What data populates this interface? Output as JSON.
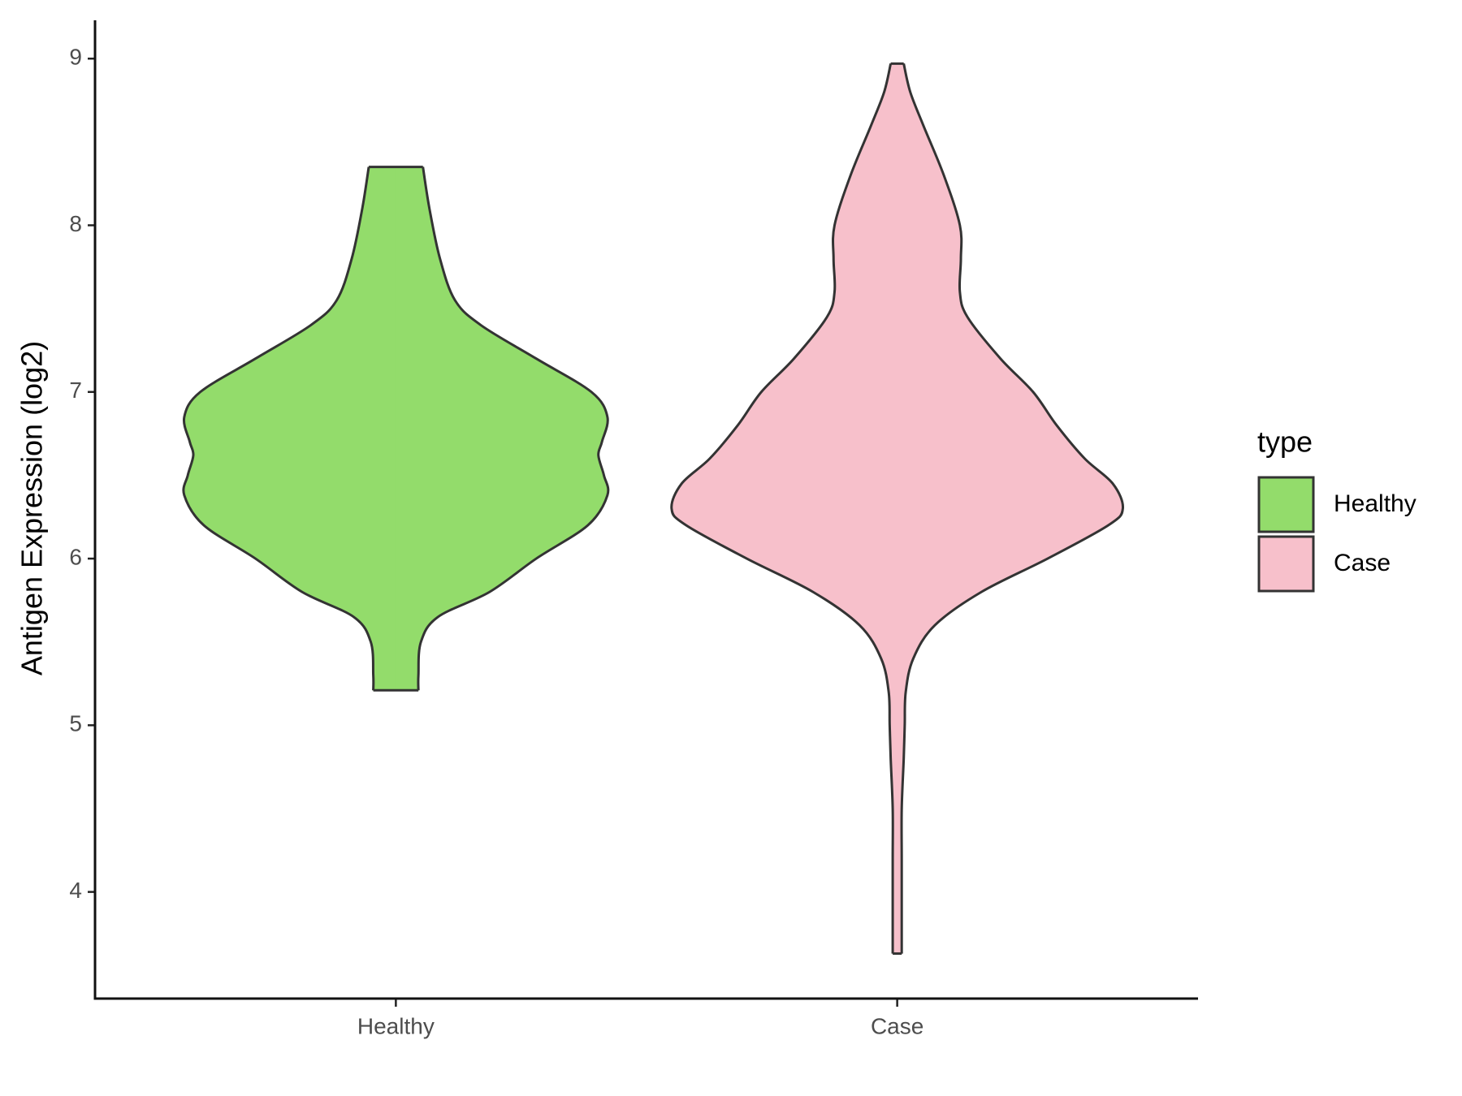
{
  "chart_data": {
    "type": "violin",
    "y_label": "Antigen Expression (log2)",
    "categories": [
      "Healthy",
      "Case"
    ],
    "series": [
      {
        "name": "Healthy",
        "color": "#93dc6b",
        "y": [
          8.35,
          8.1,
          7.8,
          7.55,
          7.4,
          7.2,
          7.0,
          6.85,
          6.7,
          6.62,
          6.5,
          6.38,
          6.2,
          6.0,
          5.8,
          5.65,
          5.5,
          5.3,
          5.21
        ],
        "half_width": [
          0.054,
          0.067,
          0.088,
          0.118,
          0.17,
          0.28,
          0.39,
          0.422,
          0.411,
          0.404,
          0.415,
          0.422,
          0.383,
          0.28,
          0.187,
          0.084,
          0.05,
          0.045,
          0.045
        ]
      },
      {
        "name": "Case",
        "color": "#f7c0cb",
        "y": [
          8.97,
          8.8,
          8.6,
          8.3,
          8.0,
          7.8,
          7.6,
          7.45,
          7.2,
          7.0,
          6.8,
          6.6,
          6.45,
          6.3,
          6.2,
          6.0,
          5.8,
          5.6,
          5.4,
          5.2,
          5.0,
          4.8,
          4.5,
          4.2,
          3.9,
          3.63
        ],
        "half_width": [
          0.013,
          0.026,
          0.052,
          0.093,
          0.125,
          0.127,
          0.125,
          0.14,
          0.206,
          0.271,
          0.318,
          0.374,
          0.43,
          0.45,
          0.421,
          0.3,
          0.168,
          0.075,
          0.032,
          0.017,
          0.015,
          0.013,
          0.009,
          0.009,
          0.009,
          0.009
        ]
      }
    ],
    "ylim": [
      3.36,
      9.23
    ],
    "yticks": [
      4,
      5,
      6,
      7,
      8,
      9
    ],
    "legend": {
      "title": "type",
      "position": "right"
    }
  }
}
